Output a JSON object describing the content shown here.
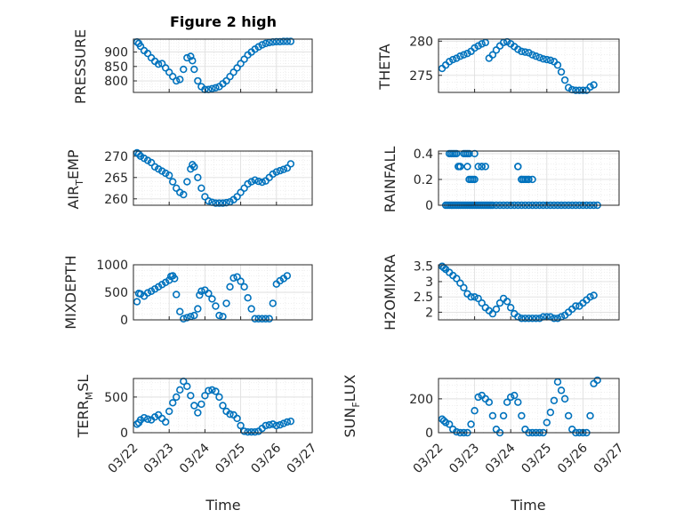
{
  "figure": {
    "title": "Figure 2 high",
    "xlabel": "Time",
    "marker_color": "#0072BD",
    "grid_color": "#DFDFDF",
    "axes_color": "#262626"
  },
  "x_tick_labels": [
    "03/22",
    "03/23",
    "03/24",
    "03/25",
    "03/26",
    "03/27"
  ],
  "labels": {
    "pressure": "PRESSURE",
    "theta": "THETA",
    "air_temp_main": "AIR",
    "air_temp_sub": "T",
    "air_temp_rest": "EMP",
    "rainfall": "RAINFALL",
    "mixdepth": "MIXDEPTH",
    "h2omixra": "H2OMIXRA",
    "terr_main": "TERR",
    "terr_sub": "M",
    "terr_rest": "SL",
    "sun_main": "SUN",
    "sun_sub": "F",
    "sun_rest": "LUX"
  },
  "chart_data": [
    {
      "id": "pressure",
      "type": "scatter",
      "title": "Figure 2 high",
      "ylabel": "PRESSURE",
      "ylim": [
        760,
        945
      ],
      "xlim": [
        0,
        5
      ],
      "yticks": [
        800,
        850,
        900
      ],
      "ytick_labels": [
        "800",
        "850",
        "900"
      ],
      "grid": "on",
      "minor_grid": "on",
      "series": [
        {
          "marker": "circle",
          "x": [
            0.1,
            0.15,
            0.2,
            0.3,
            0.4,
            0.5,
            0.6,
            0.7,
            0.8,
            0.9,
            1.0,
            1.1,
            1.2,
            1.3,
            1.4,
            1.5,
            1.6,
            1.65,
            1.7,
            1.8,
            1.9,
            2.0,
            2.1,
            2.2,
            2.3,
            2.4,
            2.5,
            2.6,
            2.7,
            2.8,
            2.9,
            3.0,
            3.1,
            3.2,
            3.3,
            3.4,
            3.5,
            3.6,
            3.7,
            3.8,
            3.9,
            4.0,
            4.1,
            4.2,
            4.3,
            4.4
          ],
          "y": [
            935,
            930,
            920,
            905,
            895,
            880,
            868,
            858,
            860,
            845,
            830,
            815,
            800,
            805,
            840,
            880,
            885,
            870,
            840,
            800,
            780,
            770,
            770,
            773,
            776,
            780,
            790,
            800,
            815,
            830,
            845,
            860,
            875,
            890,
            900,
            910,
            918,
            925,
            930,
            933,
            935,
            936,
            936,
            937,
            937,
            937
          ]
        }
      ]
    },
    {
      "id": "theta",
      "type": "scatter",
      "ylabel": "THETA",
      "ylim": [
        272.5,
        280.3
      ],
      "xlim": [
        0,
        5
      ],
      "yticks": [
        275,
        280
      ],
      "ytick_labels": [
        "275",
        "280"
      ],
      "grid": "on",
      "minor_grid": "on",
      "series": [
        {
          "marker": "circle",
          "x": [
            0.1,
            0.2,
            0.3,
            0.4,
            0.5,
            0.6,
            0.7,
            0.8,
            0.9,
            1.0,
            1.1,
            1.2,
            1.3,
            1.4,
            1.5,
            1.6,
            1.7,
            1.8,
            1.9,
            2.0,
            2.1,
            2.2,
            2.3,
            2.4,
            2.5,
            2.6,
            2.7,
            2.8,
            2.9,
            3.0,
            3.1,
            3.2,
            3.3,
            3.4,
            3.5,
            3.6,
            3.7,
            3.8,
            3.9,
            4.0,
            4.1,
            4.2,
            4.3
          ],
          "y": [
            276,
            276.5,
            277,
            277.3,
            277.5,
            277.8,
            278,
            278.2,
            278.5,
            279,
            279.3,
            279.6,
            279.8,
            277.5,
            278,
            278.7,
            279.3,
            279.8,
            279.9,
            279.6,
            279.2,
            278.8,
            278.5,
            278.4,
            278.3,
            278,
            277.8,
            277.6,
            277.4,
            277.3,
            277.2,
            277.0,
            276.5,
            275.5,
            274.3,
            273.2,
            272.9,
            272.8,
            272.8,
            272.8,
            272.8,
            273.3,
            273.6
          ]
        }
      ]
    },
    {
      "id": "air_temp",
      "type": "scatter",
      "ylabel": "AIR_TEMP",
      "ylim": [
        258.5,
        271.2
      ],
      "xlim": [
        0,
        5
      ],
      "yticks": [
        260,
        265,
        270
      ],
      "ytick_labels": [
        "260",
        "265",
        "270"
      ],
      "grid": "on",
      "minor_grid": "on",
      "series": [
        {
          "marker": "circle",
          "x": [
            0.1,
            0.15,
            0.2,
            0.3,
            0.4,
            0.5,
            0.6,
            0.7,
            0.8,
            0.9,
            1.0,
            1.1,
            1.2,
            1.3,
            1.4,
            1.5,
            1.6,
            1.65,
            1.7,
            1.8,
            1.9,
            2.0,
            2.1,
            2.2,
            2.3,
            2.4,
            2.5,
            2.6,
            2.7,
            2.8,
            2.9,
            3.0,
            3.1,
            3.2,
            3.3,
            3.4,
            3.5,
            3.6,
            3.7,
            3.8,
            3.9,
            4.0,
            4.1,
            4.2,
            4.3,
            4.4
          ],
          "y": [
            270.8,
            270.5,
            270,
            269.5,
            269,
            268.5,
            267.5,
            267,
            266.5,
            266,
            265.5,
            264,
            262.5,
            261.5,
            261,
            264,
            267,
            268,
            267.5,
            265,
            262.5,
            260.5,
            259.5,
            259.2,
            259.0,
            259.0,
            259.0,
            259.1,
            259.3,
            259.8,
            260.5,
            261.5,
            262.5,
            263.5,
            264,
            264.4,
            264.1,
            263.9,
            264.2,
            265,
            265.8,
            266.3,
            266.6,
            266.9,
            267.2,
            268.2
          ]
        }
      ]
    },
    {
      "id": "rainfall",
      "type": "scatter",
      "ylabel": "RAINFALL",
      "ylim": [
        0,
        0.42
      ],
      "xlim": [
        0,
        5
      ],
      "yticks": [
        0,
        0.2,
        0.4
      ],
      "ytick_labels": [
        "0",
        "0.2",
        "0.4"
      ],
      "grid": "on",
      "minor_grid": "on",
      "series": [
        {
          "marker": "circle",
          "x": [
            0.2,
            0.25,
            0.3,
            0.35,
            0.4,
            0.45,
            0.5,
            0.55,
            0.6,
            0.65,
            0.7,
            0.75,
            0.8,
            0.85,
            0.9,
            0.95,
            1.0,
            1.05,
            1.1,
            1.15,
            1.2,
            1.25,
            1.3,
            1.35,
            1.4,
            1.45,
            1.5,
            1.6,
            1.7,
            1.8,
            1.9,
            2.0,
            2.1,
            2.2,
            2.3,
            2.4,
            2.5,
            2.6,
            2.7,
            2.8,
            2.9,
            3.0,
            3.1,
            3.2,
            3.3,
            3.4,
            3.5,
            3.6,
            3.7,
            3.8,
            3.9,
            4.0,
            4.1,
            4.2,
            4.3,
            4.4,
            0.3,
            0.35,
            0.4,
            0.45,
            0.5,
            0.55,
            0.6,
            0.7,
            0.75,
            0.8,
            0.85,
            0.9,
            1.0,
            1.1,
            1.2,
            2.2,
            2.3,
            2.35,
            2.4,
            2.45,
            2.5,
            2.6,
            0.55,
            0.6,
            0.8,
            0.85,
            0.95,
            1.0,
            1.2,
            1.3,
            2.2,
            2.3
          ],
          "y": [
            0,
            0,
            0,
            0,
            0,
            0,
            0,
            0,
            0,
            0,
            0,
            0,
            0,
            0,
            0,
            0,
            0,
            0,
            0,
            0,
            0,
            0,
            0,
            0,
            0,
            0,
            0,
            0,
            0,
            0,
            0,
            0,
            0,
            0,
            0,
            0,
            0,
            0,
            0,
            0,
            0,
            0,
            0,
            0,
            0,
            0,
            0,
            0,
            0,
            0,
            0,
            0,
            0,
            0,
            0,
            0,
            0.4,
            0.4,
            0.4,
            0.4,
            0.4,
            0.3,
            0.3,
            0.4,
            0.4,
            0.4,
            0.4,
            0.2,
            0.2,
            0.3,
            0.3,
            0.3,
            0.2,
            0.2,
            0.2,
            0.2,
            0.2,
            0.2,
            0.3,
            0.3,
            0.3,
            0.2,
            0.2,
            0.4,
            0.3,
            0.3,
            0.3,
            0.2
          ]
        }
      ]
    },
    {
      "id": "mixdepth",
      "type": "scatter",
      "ylabel": "MIXDEPTH",
      "ylim": [
        0,
        1000
      ],
      "xlim": [
        0,
        5
      ],
      "yticks": [
        0,
        500,
        1000
      ],
      "ytick_labels": [
        "0",
        "500",
        "1000"
      ],
      "grid": "on",
      "minor_grid": "on",
      "series": [
        {
          "marker": "circle",
          "x": [
            0.1,
            0.15,
            0.2,
            0.3,
            0.4,
            0.5,
            0.6,
            0.7,
            0.8,
            0.9,
            1.0,
            1.05,
            1.1,
            1.15,
            1.2,
            1.3,
            1.4,
            1.5,
            1.6,
            1.7,
            1.8,
            1.85,
            1.9,
            2.0,
            2.1,
            2.2,
            2.3,
            2.4,
            2.5,
            2.6,
            2.7,
            2.8,
            2.9,
            3.0,
            3.1,
            3.2,
            3.3,
            3.4,
            3.5,
            3.6,
            3.7,
            3.8,
            3.9,
            4.0,
            4.1,
            4.2,
            4.3
          ],
          "y": [
            330,
            480,
            470,
            430,
            490,
            520,
            560,
            600,
            640,
            680,
            720,
            790,
            800,
            750,
            460,
            150,
            20,
            40,
            60,
            80,
            200,
            450,
            520,
            540,
            480,
            380,
            250,
            80,
            60,
            300,
            600,
            760,
            780,
            700,
            600,
            400,
            200,
            20,
            20,
            20,
            20,
            20,
            300,
            650,
            710,
            750,
            800
          ]
        }
      ]
    },
    {
      "id": "h2omixra",
      "type": "scatter",
      "ylabel": "H2OMIXRA",
      "ylim": [
        1.75,
        3.55
      ],
      "xlim": [
        0,
        5
      ],
      "yticks": [
        2,
        2.5,
        3,
        3.5
      ],
      "ytick_labels": [
        "2",
        "2.5",
        "3",
        "3.5"
      ],
      "grid": "on",
      "minor_grid": "on",
      "series": [
        {
          "marker": "circle",
          "x": [
            0.1,
            0.15,
            0.2,
            0.3,
            0.4,
            0.5,
            0.6,
            0.7,
            0.8,
            0.9,
            1.0,
            1.1,
            1.2,
            1.3,
            1.4,
            1.5,
            1.6,
            1.7,
            1.8,
            1.9,
            2.0,
            2.1,
            2.2,
            2.3,
            2.4,
            2.5,
            2.6,
            2.7,
            2.8,
            2.9,
            3.0,
            3.1,
            3.2,
            3.3,
            3.4,
            3.5,
            3.6,
            3.7,
            3.8,
            3.9,
            4.0,
            4.1,
            4.2,
            4.3
          ],
          "y": [
            3.5,
            3.45,
            3.4,
            3.3,
            3.2,
            3.1,
            2.95,
            2.8,
            2.6,
            2.5,
            2.5,
            2.45,
            2.3,
            2.15,
            2.05,
            1.95,
            2.1,
            2.3,
            2.45,
            2.35,
            2.15,
            1.95,
            1.85,
            1.8,
            1.8,
            1.8,
            1.8,
            1.8,
            1.8,
            1.85,
            1.85,
            1.85,
            1.8,
            1.8,
            1.85,
            1.9,
            2.0,
            2.1,
            2.2,
            2.2,
            2.3,
            2.4,
            2.5,
            2.55
          ]
        }
      ]
    },
    {
      "id": "terr_msl",
      "type": "scatter",
      "ylabel": "TERR_MSL",
      "ylim": [
        0,
        760
      ],
      "xlim": [
        0,
        5
      ],
      "yticks": [
        0,
        500
      ],
      "ytick_labels": [
        "0",
        "500"
      ],
      "grid": "on",
      "minor_grid": "on",
      "series": [
        {
          "marker": "circle",
          "x": [
            0.1,
            0.15,
            0.2,
            0.3,
            0.4,
            0.5,
            0.6,
            0.7,
            0.8,
            0.9,
            1.0,
            1.1,
            1.2,
            1.3,
            1.4,
            1.5,
            1.6,
            1.7,
            1.8,
            1.9,
            2.0,
            2.1,
            2.2,
            2.3,
            2.4,
            2.5,
            2.6,
            2.7,
            2.8,
            2.9,
            3.0,
            3.1,
            3.2,
            3.3,
            3.4,
            3.5,
            3.6,
            3.7,
            3.8,
            3.9,
            4.0,
            4.1,
            4.2,
            4.3,
            4.4
          ],
          "y": [
            120,
            140,
            180,
            210,
            190,
            180,
            220,
            250,
            200,
            150,
            300,
            420,
            500,
            600,
            720,
            650,
            520,
            380,
            280,
            400,
            520,
            590,
            600,
            580,
            500,
            380,
            300,
            260,
            250,
            200,
            100,
            20,
            10,
            10,
            10,
            20,
            60,
            100,
            110,
            120,
            100,
            110,
            130,
            150,
            160
          ]
        }
      ]
    },
    {
      "id": "sun_flux",
      "type": "scatter",
      "ylabel": "SUN_FLUX",
      "ylim": [
        0,
        320
      ],
      "xlim": [
        0,
        5
      ],
      "yticks": [
        0,
        200
      ],
      "ytick_labels": [
        "0",
        "200"
      ],
      "grid": "on",
      "minor_grid": "on",
      "series": [
        {
          "marker": "circle",
          "x": [
            0.1,
            0.15,
            0.2,
            0.3,
            0.4,
            0.5,
            0.6,
            0.7,
            0.8,
            0.9,
            1.0,
            1.1,
            1.2,
            1.3,
            1.4,
            1.5,
            1.6,
            1.7,
            1.8,
            1.9,
            2.0,
            2.1,
            2.2,
            2.3,
            2.4,
            2.5,
            2.6,
            2.7,
            2.8,
            2.9,
            3.0,
            3.1,
            3.2,
            3.3,
            3.4,
            3.5,
            3.6,
            3.7,
            3.8,
            3.9,
            4.0,
            4.1,
            4.2,
            4.3,
            4.4
          ],
          "y": [
            80,
            70,
            60,
            50,
            20,
            5,
            0,
            0,
            0,
            50,
            130,
            210,
            220,
            200,
            180,
            100,
            20,
            0,
            100,
            180,
            210,
            220,
            180,
            100,
            20,
            0,
            0,
            0,
            0,
            0,
            60,
            120,
            190,
            300,
            250,
            200,
            100,
            20,
            0,
            0,
            0,
            0,
            100,
            290,
            310
          ]
        }
      ]
    }
  ]
}
